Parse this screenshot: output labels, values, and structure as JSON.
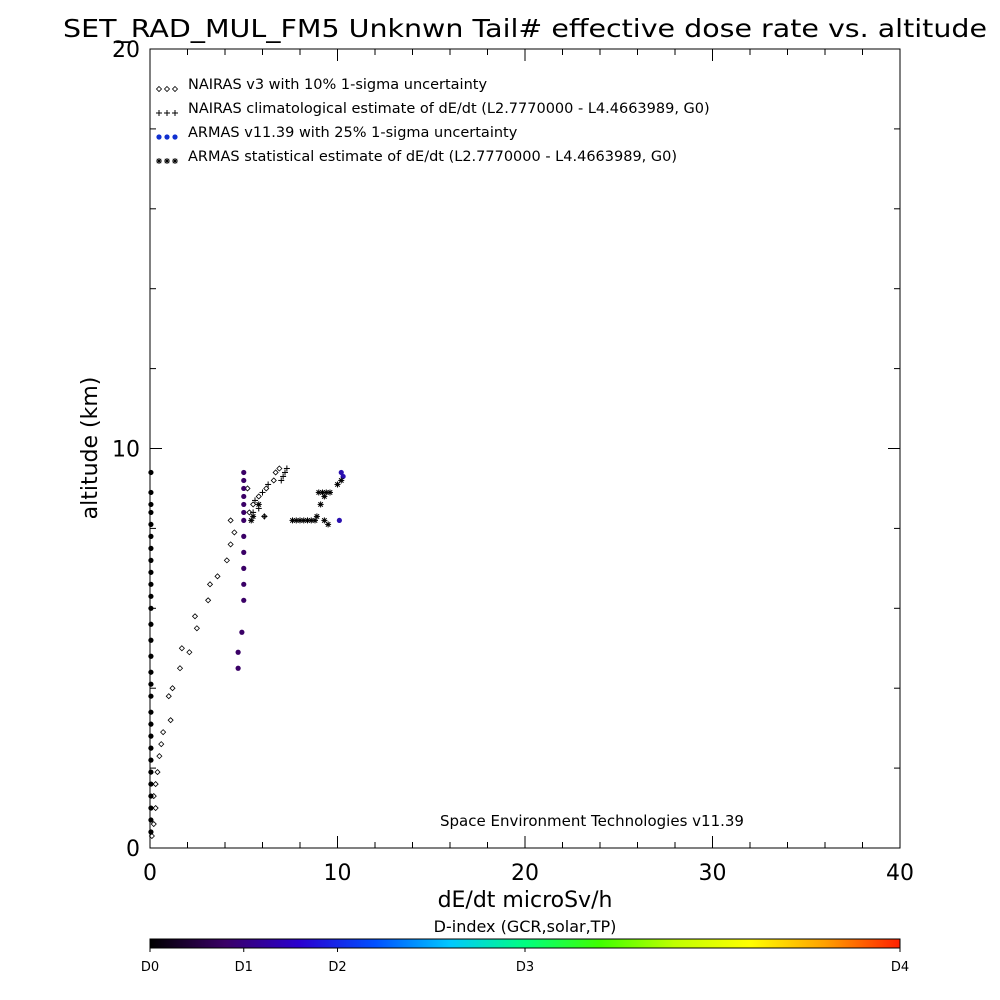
{
  "chart_data": {
    "type": "scatter",
    "title": "SET_RAD_MUL_FM5 Unknwn Tail#  effective dose rate vs. altitude",
    "xlabel": "dE/dt microSv/h",
    "ylabel": "altitude (km)",
    "xlim": [
      0,
      40
    ],
    "ylim": [
      0,
      20
    ],
    "x_ticks": [
      {
        "value": 0,
        "label": "0"
      },
      {
        "value": 10,
        "label": "10"
      },
      {
        "value": 20,
        "label": "20"
      },
      {
        "value": 30,
        "label": "30"
      },
      {
        "value": 40,
        "label": "40"
      }
    ],
    "y_ticks": [
      {
        "value": 0,
        "label": "0"
      },
      {
        "value": 10,
        "label": "10"
      },
      {
        "value": 20,
        "label": "20"
      }
    ],
    "legend_position": "top-left",
    "legend": [
      {
        "marker": "diamond",
        "text": "NAIRAS v3 with 10% 1-sigma uncertainty"
      },
      {
        "marker": "plus",
        "text": "NAIRAS climatological estimate of dE/dt (L2.7770000 - L4.4663989, G0)"
      },
      {
        "marker": "dot",
        "text": "ARMAS v11.39 with 25% 1-sigma uncertainty"
      },
      {
        "marker": "asterisk",
        "text": "ARMAS statistical estimate of dE/dt (L2.7770000 - L4.4663989, G0)"
      }
    ],
    "annotation": "Space Environment Technologies v11.39",
    "colorbar": {
      "label": "D-index (GCR,solar,TP)",
      "ticks": [
        {
          "label": "D0",
          "pos": 0
        },
        {
          "label": "D1",
          "pos": 0.125
        },
        {
          "label": "D2",
          "pos": 0.25
        },
        {
          "label": "D3",
          "pos": 0.5
        },
        {
          "label": "D4",
          "pos": 1
        }
      ],
      "colors": [
        "#000000",
        "#3a0066",
        "#2a00d0",
        "#0050ff",
        "#00c8ff",
        "#00ff80",
        "#40ff00",
        "#c0ff00",
        "#ffff00",
        "#ffa000",
        "#ff2000"
      ]
    },
    "series": [
      {
        "name": "NAIRAS v3 with 10% 1-sigma uncertainty",
        "marker": "diamond",
        "color": "#000000",
        "points": [
          [
            0.1,
            0.3
          ],
          [
            0.2,
            0.6
          ],
          [
            0.3,
            1.0
          ],
          [
            0.2,
            1.3
          ],
          [
            0.3,
            1.6
          ],
          [
            0.4,
            1.9
          ],
          [
            0.5,
            2.3
          ],
          [
            0.6,
            2.6
          ],
          [
            0.7,
            2.9
          ],
          [
            1.1,
            3.2
          ],
          [
            1.0,
            3.8
          ],
          [
            1.2,
            4.0
          ],
          [
            1.6,
            4.5
          ],
          [
            2.1,
            4.9
          ],
          [
            1.7,
            5.0
          ],
          [
            2.5,
            5.5
          ],
          [
            2.4,
            5.8
          ],
          [
            3.1,
            6.2
          ],
          [
            3.2,
            6.6
          ],
          [
            3.6,
            6.8
          ],
          [
            4.1,
            7.2
          ],
          [
            4.3,
            7.6
          ],
          [
            4.5,
            7.9
          ],
          [
            4.3,
            8.2
          ],
          [
            5.3,
            8.4
          ],
          [
            5.5,
            8.6
          ],
          [
            5.8,
            8.8
          ],
          [
            5.2,
            9.0
          ],
          [
            6.2,
            9.0
          ],
          [
            6.6,
            9.2
          ],
          [
            6.7,
            9.4
          ],
          [
            6.9,
            9.5
          ],
          [
            6.1,
            8.3
          ]
        ]
      },
      {
        "name": "NAIRAS climatological estimate of dE/dt (L2.7770000 - L4.4663989, G0)",
        "marker": "plus",
        "color": "#000000",
        "points": [
          [
            5.5,
            8.4
          ],
          [
            5.8,
            8.5
          ],
          [
            6.1,
            8.3
          ],
          [
            6.0,
            8.9
          ],
          [
            6.3,
            9.1
          ],
          [
            7.0,
            9.2
          ],
          [
            7.2,
            9.4
          ],
          [
            7.3,
            9.5
          ],
          [
            7.1,
            9.3
          ],
          [
            5.6,
            8.7
          ]
        ]
      },
      {
        "name": "ARMAS v11.39 with 25% 1-sigma uncertainty",
        "marker": "dot",
        "color": "#3a0066",
        "points": [
          [
            0.05,
            0.4
          ],
          [
            0.05,
            0.7
          ],
          [
            0.05,
            1.0
          ],
          [
            0.05,
            1.3
          ],
          [
            0.05,
            1.6
          ],
          [
            0.05,
            1.9
          ],
          [
            0.05,
            2.2
          ],
          [
            0.05,
            2.5
          ],
          [
            0.05,
            2.8
          ],
          [
            0.05,
            3.1
          ],
          [
            0.05,
            3.4
          ],
          [
            0.05,
            3.8
          ],
          [
            0.05,
            4.1
          ],
          [
            0.05,
            4.4
          ],
          [
            0.05,
            4.8
          ],
          [
            0.05,
            5.2
          ],
          [
            0.05,
            5.6
          ],
          [
            0.05,
            6.0
          ],
          [
            0.05,
            6.3
          ],
          [
            0.05,
            6.6
          ],
          [
            0.05,
            6.9
          ],
          [
            0.05,
            7.2
          ],
          [
            0.05,
            7.5
          ],
          [
            0.05,
            7.8
          ],
          [
            0.05,
            8.1
          ],
          [
            0.05,
            8.4
          ],
          [
            0.05,
            8.6
          ],
          [
            0.05,
            8.9
          ],
          [
            0.05,
            9.4
          ],
          [
            4.7,
            4.5
          ],
          [
            4.7,
            4.9
          ],
          [
            4.9,
            5.4
          ],
          [
            5.0,
            6.2
          ],
          [
            5.0,
            6.6
          ],
          [
            5.0,
            7.0
          ],
          [
            5.0,
            7.4
          ],
          [
            5.0,
            7.8
          ],
          [
            5.0,
            8.2
          ],
          [
            5.0,
            8.4
          ],
          [
            5.0,
            8.6
          ],
          [
            5.0,
            8.8
          ],
          [
            5.0,
            9.0
          ],
          [
            5.0,
            9.2
          ],
          [
            5.0,
            9.4
          ],
          [
            10.2,
            9.4
          ],
          [
            10.3,
            9.3
          ],
          [
            10.1,
            8.2
          ]
        ]
      },
      {
        "name": "ARMAS statistical estimate of dE/dt (L2.7770000 - L4.4663989, G0)",
        "marker": "asterisk",
        "color": "#000000",
        "points": [
          [
            5.5,
            8.3
          ],
          [
            5.8,
            8.6
          ],
          [
            5.4,
            8.2
          ],
          [
            7.6,
            8.2
          ],
          [
            7.8,
            8.2
          ],
          [
            8.0,
            8.2
          ],
          [
            8.2,
            8.2
          ],
          [
            8.4,
            8.2
          ],
          [
            8.6,
            8.2
          ],
          [
            8.8,
            8.2
          ],
          [
            8.9,
            8.3
          ],
          [
            9.1,
            8.6
          ],
          [
            9.3,
            8.8
          ],
          [
            9.0,
            8.9
          ],
          [
            9.2,
            8.9
          ],
          [
            9.4,
            8.9
          ],
          [
            9.6,
            8.9
          ],
          [
            9.3,
            8.2
          ],
          [
            9.5,
            8.1
          ],
          [
            10.0,
            9.1
          ],
          [
            10.2,
            9.2
          ]
        ]
      }
    ]
  }
}
